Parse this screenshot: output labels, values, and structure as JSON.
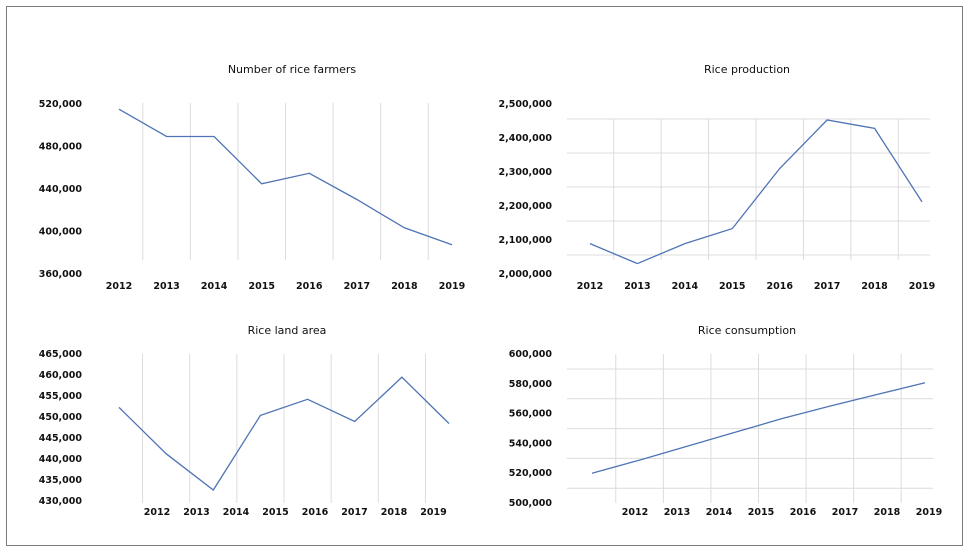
{
  "colors": {
    "series": "#4f74b5",
    "grid": "#dcdcdc",
    "border": "#7a7a7a"
  },
  "chart_data": [
    {
      "type": "line",
      "title": "Number of rice farmers",
      "categories": [
        "2012",
        "2013",
        "2014",
        "2015",
        "2016",
        "2017",
        "2018",
        "2019"
      ],
      "values": [
        516000,
        490000,
        490000,
        445000,
        455000,
        430000,
        403000,
        387000
      ],
      "y_ticks": [
        "520,000",
        "480,000",
        "440,000",
        "400,000",
        "360,000"
      ],
      "ylim": [
        360000,
        520000
      ],
      "grid": "vertical"
    },
    {
      "type": "line",
      "title": "Rice production",
      "categories": [
        "2012",
        "2013",
        "2014",
        "2015",
        "2016",
        "2017",
        "2018",
        "2019"
      ],
      "values": [
        2085000,
        2025000,
        2085000,
        2130000,
        2310000,
        2455000,
        2430000,
        2210000
      ],
      "y_ticks": [
        "2,500,000",
        "2,400,000",
        "2,300,000",
        "2,200,000",
        "2,100,000",
        "2,000,000"
      ],
      "ylim": [
        2000000,
        2500000
      ],
      "grid": "both"
    },
    {
      "type": "line",
      "title": "Rice land area",
      "categories": [
        "2012",
        "2013",
        "2014",
        "2015",
        "2016",
        "2017",
        "2018",
        "2019"
      ],
      "values": [
        452000,
        440500,
        431500,
        450000,
        454000,
        448500,
        459500,
        448000
      ],
      "y_ticks": [
        "465,000",
        "460,000",
        "455,000",
        "450,000",
        "445,000",
        "440,000",
        "435,000",
        "430,000"
      ],
      "ylim": [
        430000,
        465000
      ],
      "grid": "vertical"
    },
    {
      "type": "line",
      "title": "Rice consumption",
      "categories": [
        "2012",
        "2013",
        "2014",
        "2015",
        "2016",
        "2017",
        "2018",
        "2019"
      ],
      "values": [
        519000,
        528000,
        537500,
        547000,
        556500,
        565000,
        573000,
        581000
      ],
      "y_ticks": [
        "600,000",
        "580,000",
        "560,000",
        "540,000",
        "520,000",
        "500,000"
      ],
      "ylim": [
        500000,
        600000
      ],
      "grid": "both"
    }
  ]
}
